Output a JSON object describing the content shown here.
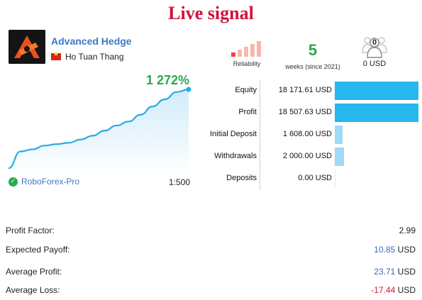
{
  "headline": "Live signal",
  "signal": {
    "name": "Advanced Hedge",
    "author": "Ho Tuan Thang"
  },
  "reliability": {
    "label": "Reliability",
    "level": 1,
    "max": 5,
    "active_color": "#e8483a",
    "inactive_color": "#f6b7ad"
  },
  "weeks": {
    "value": "5",
    "label": "weeks (since 2021)"
  },
  "subscribers": {
    "count": "0",
    "value": "0 USD"
  },
  "growth": {
    "value": "1 272%",
    "points": [
      0.6,
      21.8,
      24.5,
      29.2,
      31,
      32.7,
      36.8,
      41.6,
      48,
      54.5,
      59.5,
      68.1,
      78.5,
      87.4,
      96.7,
      100
    ]
  },
  "broker": "RoboForex-Pro",
  "leverage": "1:500",
  "stats": [
    {
      "label": "Equity",
      "value": "18 171.61 USD",
      "bar_fraction": 1.0,
      "style": "dark"
    },
    {
      "label": "Profit",
      "value": "18 507.63 USD",
      "bar_fraction": 1.0,
      "style": "dark"
    },
    {
      "label": "Initial Deposit",
      "value": "1 608.00 USD",
      "bar_fraction": 0.09,
      "style": "light"
    },
    {
      "label": "Withdrawals",
      "value": "2 000.00 USD",
      "bar_fraction": 0.11,
      "style": "light"
    },
    {
      "label": "Deposits",
      "value": "0.00 USD",
      "bar_fraction": 0.0,
      "style": "light"
    }
  ],
  "metrics": [
    {
      "label": "Profit Factor:",
      "number": "2.99",
      "unit": "",
      "color": "#222222"
    },
    {
      "label": "Expected Payoff:",
      "number": "10.85",
      "unit": "USD",
      "color": "#3d6cb3"
    },
    {
      "label": "Average Profit:",
      "number": "23.71",
      "unit": "USD",
      "color": "#3d6cb3"
    },
    {
      "label": "Average Loss:",
      "number": "-17.44",
      "unit": "USD",
      "color": "#d4123a"
    }
  ],
  "colors": {
    "accent_green": "#2da84e",
    "link_blue": "#3d78c2",
    "chart_line": "#2aa9e6",
    "bar": "#27b7ee"
  },
  "icons": {
    "logo": "advanced-hedge-logo",
    "flag": "vietnam-flag-icon",
    "check": "check-circle-icon",
    "subscribers": "users-icon"
  }
}
